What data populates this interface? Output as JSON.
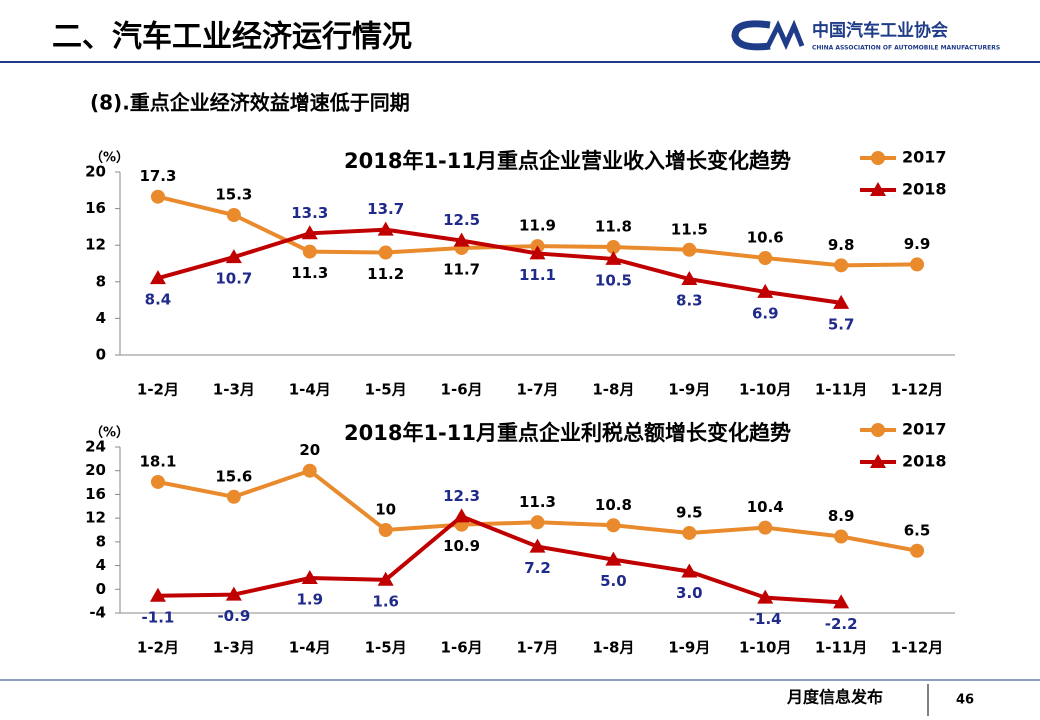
{
  "header": {
    "title": "二、汽车工业经济运行情况",
    "logo_name": "中国汽车工业协会",
    "logo_subtitle": "CHINA ASSOCIATION OF AUTOMOBILE MANUFACTURERS"
  },
  "subtitle": "(8).重点企业经济效益增速低于同期",
  "chart_data": [
    {
      "type": "line",
      "title": "2018年1-11月重点企业营业收入增长变化趋势",
      "y_label": "（%）",
      "categories": [
        "1-2月",
        "1-3月",
        "1-4月",
        "1-5月",
        "1-6月",
        "1-7月",
        "1-8月",
        "1-9月",
        "1-10月",
        "1-11月",
        "1-12月"
      ],
      "series": [
        {
          "name": "2017",
          "color": "#e98a2c",
          "marker": "circle",
          "values": [
            17.3,
            15.3,
            11.3,
            11.2,
            11.7,
            11.9,
            11.8,
            11.5,
            10.6,
            9.8,
            9.9
          ]
        },
        {
          "name": "2018",
          "color": "#c00000",
          "marker": "triangle",
          "values": [
            8.4,
            10.7,
            13.3,
            13.7,
            12.5,
            11.1,
            10.5,
            8.3,
            6.9,
            5.7,
            null
          ]
        }
      ],
      "ylim": [
        0,
        20
      ],
      "yticks": [
        0,
        4,
        8,
        12,
        16,
        20
      ],
      "grid": false,
      "legend": "upper right"
    },
    {
      "type": "line",
      "title": "2018年1-11月重点企业利税总额增长变化趋势",
      "y_label": "（%）",
      "categories": [
        "1-2月",
        "1-3月",
        "1-4月",
        "1-5月",
        "1-6月",
        "1-7月",
        "1-8月",
        "1-9月",
        "1-10月",
        "1-11月",
        "1-12月"
      ],
      "series": [
        {
          "name": "2017",
          "color": "#e98a2c",
          "marker": "circle",
          "values": [
            18.1,
            15.6,
            20,
            10,
            10.9,
            11.3,
            10.8,
            9.5,
            10.4,
            8.9,
            6.5
          ]
        },
        {
          "name": "2018",
          "color": "#c00000",
          "marker": "triangle",
          "values": [
            -1.1,
            -0.9,
            1.9,
            1.6,
            12.3,
            7.2,
            5.0,
            3.0,
            -1.4,
            -2.2,
            null
          ],
          "value_labels": [
            "-1.1",
            "-0.9",
            "1.9",
            "1.6",
            "12.3",
            "7.2",
            "5.0",
            "3.0",
            "-1.4",
            "-2.2",
            null
          ]
        }
      ],
      "ylim": [
        -4,
        24
      ],
      "yticks": [
        -4,
        0,
        4,
        8,
        12,
        16,
        20,
        24
      ],
      "grid": false,
      "legend": "upper right"
    }
  ],
  "footer": {
    "text": "月度信息发布",
    "page": "46"
  }
}
